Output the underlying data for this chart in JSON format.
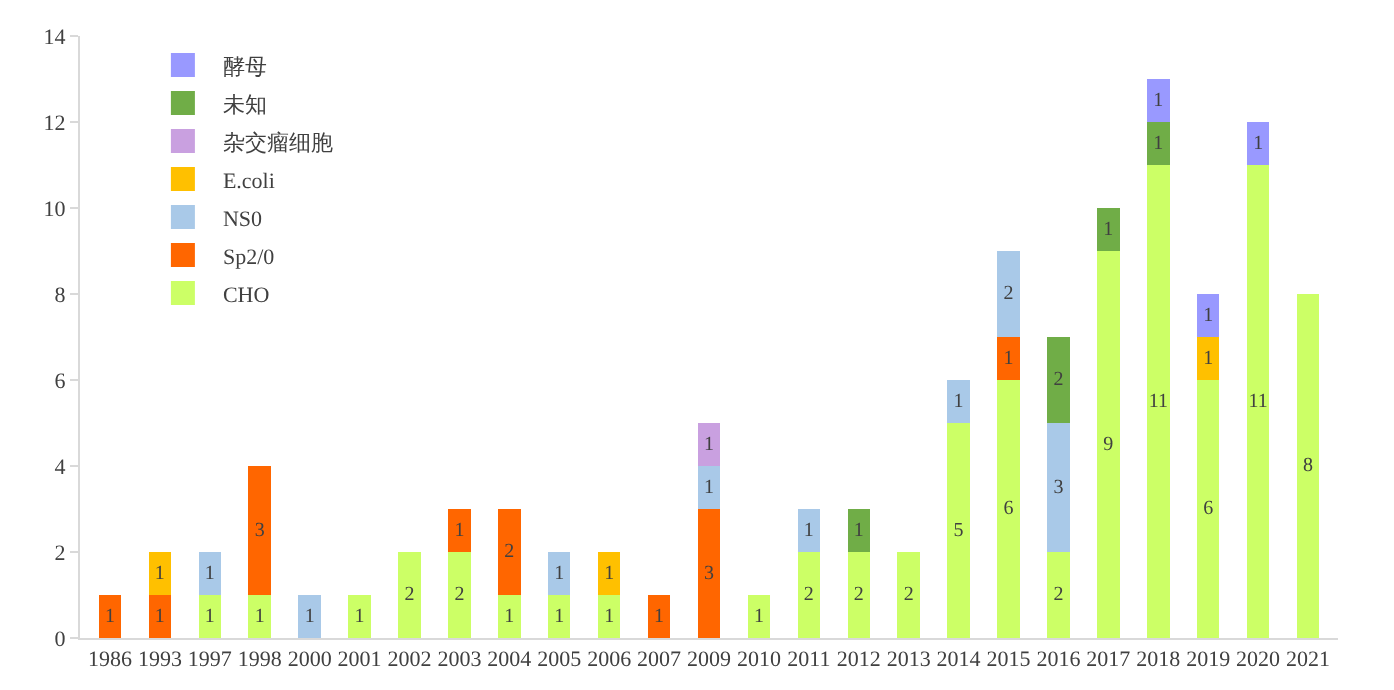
{
  "chart_data": {
    "type": "bar",
    "stacked": true,
    "data_labels": true,
    "legend": "top left",
    "grid": false,
    "categories": [
      "1986",
      "1993",
      "1997",
      "1998",
      "2000",
      "2001",
      "2002",
      "2003",
      "2004",
      "2005",
      "2006",
      "2007",
      "2009",
      "2010",
      "2011",
      "2012",
      "2013",
      "2014",
      "2015",
      "2016",
      "2017",
      "2018",
      "2019",
      "2020",
      "2021"
    ],
    "ylim": [
      0,
      14
    ],
    "yticks": [
      0,
      2,
      4,
      6,
      8,
      10,
      12,
      14
    ],
    "series": [
      {
        "name": "CHO",
        "color": "#ccff66",
        "values": [
          null,
          null,
          1,
          1,
          null,
          1,
          2,
          2,
          1,
          1,
          1,
          null,
          null,
          1,
          2,
          2,
          2,
          5,
          6,
          2,
          9,
          11,
          6,
          11,
          8
        ]
      },
      {
        "name": "Sp2/0",
        "color": "#ff6600",
        "values": [
          1,
          1,
          null,
          3,
          null,
          null,
          null,
          1,
          2,
          null,
          null,
          1,
          3,
          null,
          null,
          null,
          null,
          null,
          1,
          null,
          null,
          null,
          null,
          null,
          null
        ]
      },
      {
        "name": "NS0",
        "color": "#a9c9e8",
        "values": [
          null,
          null,
          1,
          null,
          1,
          null,
          null,
          null,
          null,
          1,
          null,
          null,
          1,
          null,
          1,
          null,
          null,
          1,
          2,
          3,
          null,
          null,
          null,
          null,
          null
        ]
      },
      {
        "name": "E.coli",
        "color": "#ffc000",
        "values": [
          null,
          1,
          null,
          null,
          null,
          null,
          null,
          null,
          null,
          null,
          1,
          null,
          null,
          null,
          null,
          null,
          null,
          null,
          null,
          null,
          null,
          null,
          1,
          null,
          null
        ]
      },
      {
        "name": "杂交瘤细胞",
        "color": "#c9a0e0",
        "values": [
          null,
          null,
          null,
          null,
          null,
          null,
          null,
          null,
          null,
          null,
          null,
          null,
          1,
          null,
          null,
          null,
          null,
          null,
          null,
          null,
          null,
          null,
          null,
          null,
          null
        ]
      },
      {
        "name": "未知",
        "color": "#70ad47",
        "values": [
          null,
          null,
          null,
          null,
          null,
          null,
          null,
          null,
          null,
          null,
          null,
          null,
          null,
          null,
          null,
          1,
          null,
          null,
          null,
          2,
          1,
          1,
          null,
          null,
          null
        ]
      },
      {
        "name": "酵母",
        "color": "#9999ff",
        "values": [
          null,
          null,
          null,
          null,
          null,
          null,
          null,
          null,
          null,
          null,
          null,
          null,
          null,
          null,
          null,
          null,
          null,
          null,
          null,
          null,
          null,
          1,
          1,
          1,
          null
        ]
      }
    ]
  }
}
